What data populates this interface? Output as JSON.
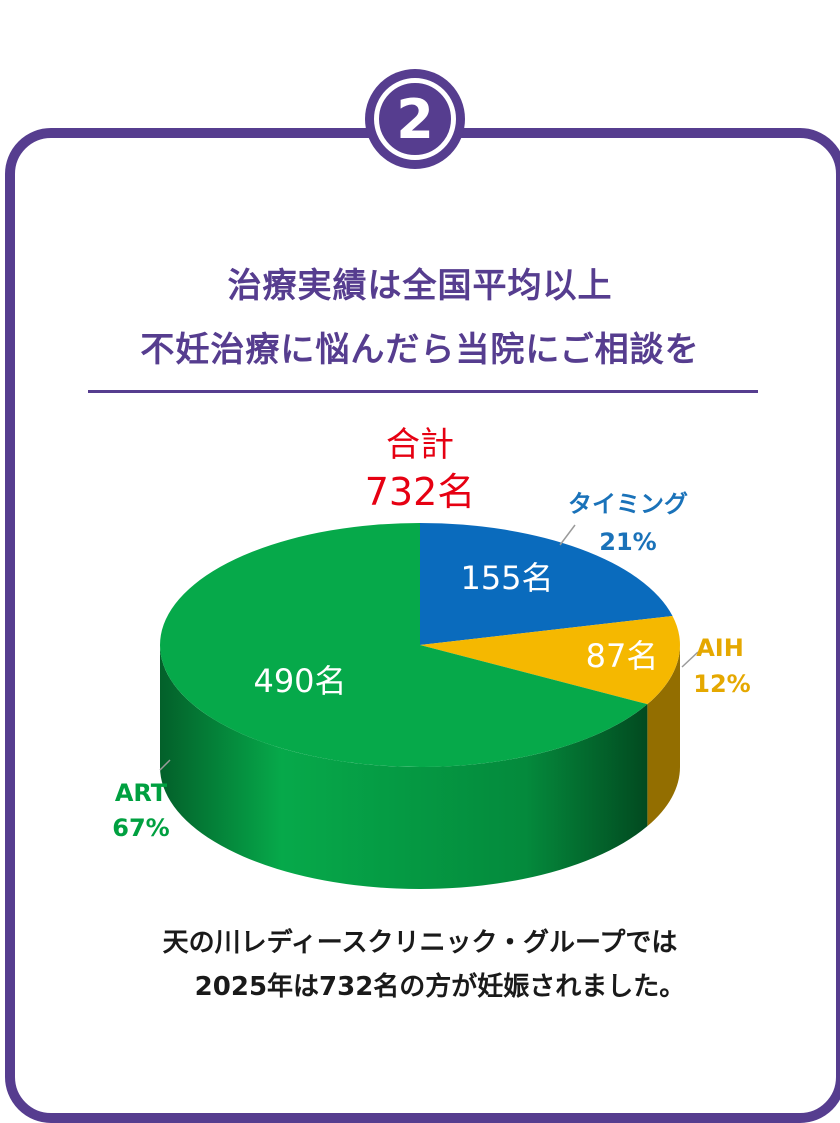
{
  "badge": {
    "number": "2"
  },
  "heading": {
    "line1": "治療実績は全国平均以上",
    "line2": "不妊治療に悩んだら当院にご相談を"
  },
  "total": {
    "label": "合計",
    "value": "732名"
  },
  "chart_data": {
    "type": "pie",
    "unit": "名",
    "total": 732,
    "slices": [
      {
        "name": "タイミング",
        "value": 155,
        "percent": 21,
        "value_label": "155名",
        "percent_label": "21%",
        "color": "#0a6bbd"
      },
      {
        "name": "AIH",
        "value": 87,
        "percent": 12,
        "value_label": "87名",
        "percent_label": "12%",
        "color": "#f5b800"
      },
      {
        "name": "ART",
        "value": 490,
        "percent": 67,
        "value_label": "490名",
        "percent_label": "67%",
        "color": "#06a94a"
      }
    ]
  },
  "footer": {
    "line1": "天の川レディースクリニック・グループでは",
    "line2": "2025年は732名の方が妊娠されました。"
  },
  "colors": {
    "brand": "#563d8f",
    "total_label": "#e60012",
    "timing_label": "#1a72b9",
    "aih_label": "#e5a800",
    "art_label": "#00a040"
  }
}
